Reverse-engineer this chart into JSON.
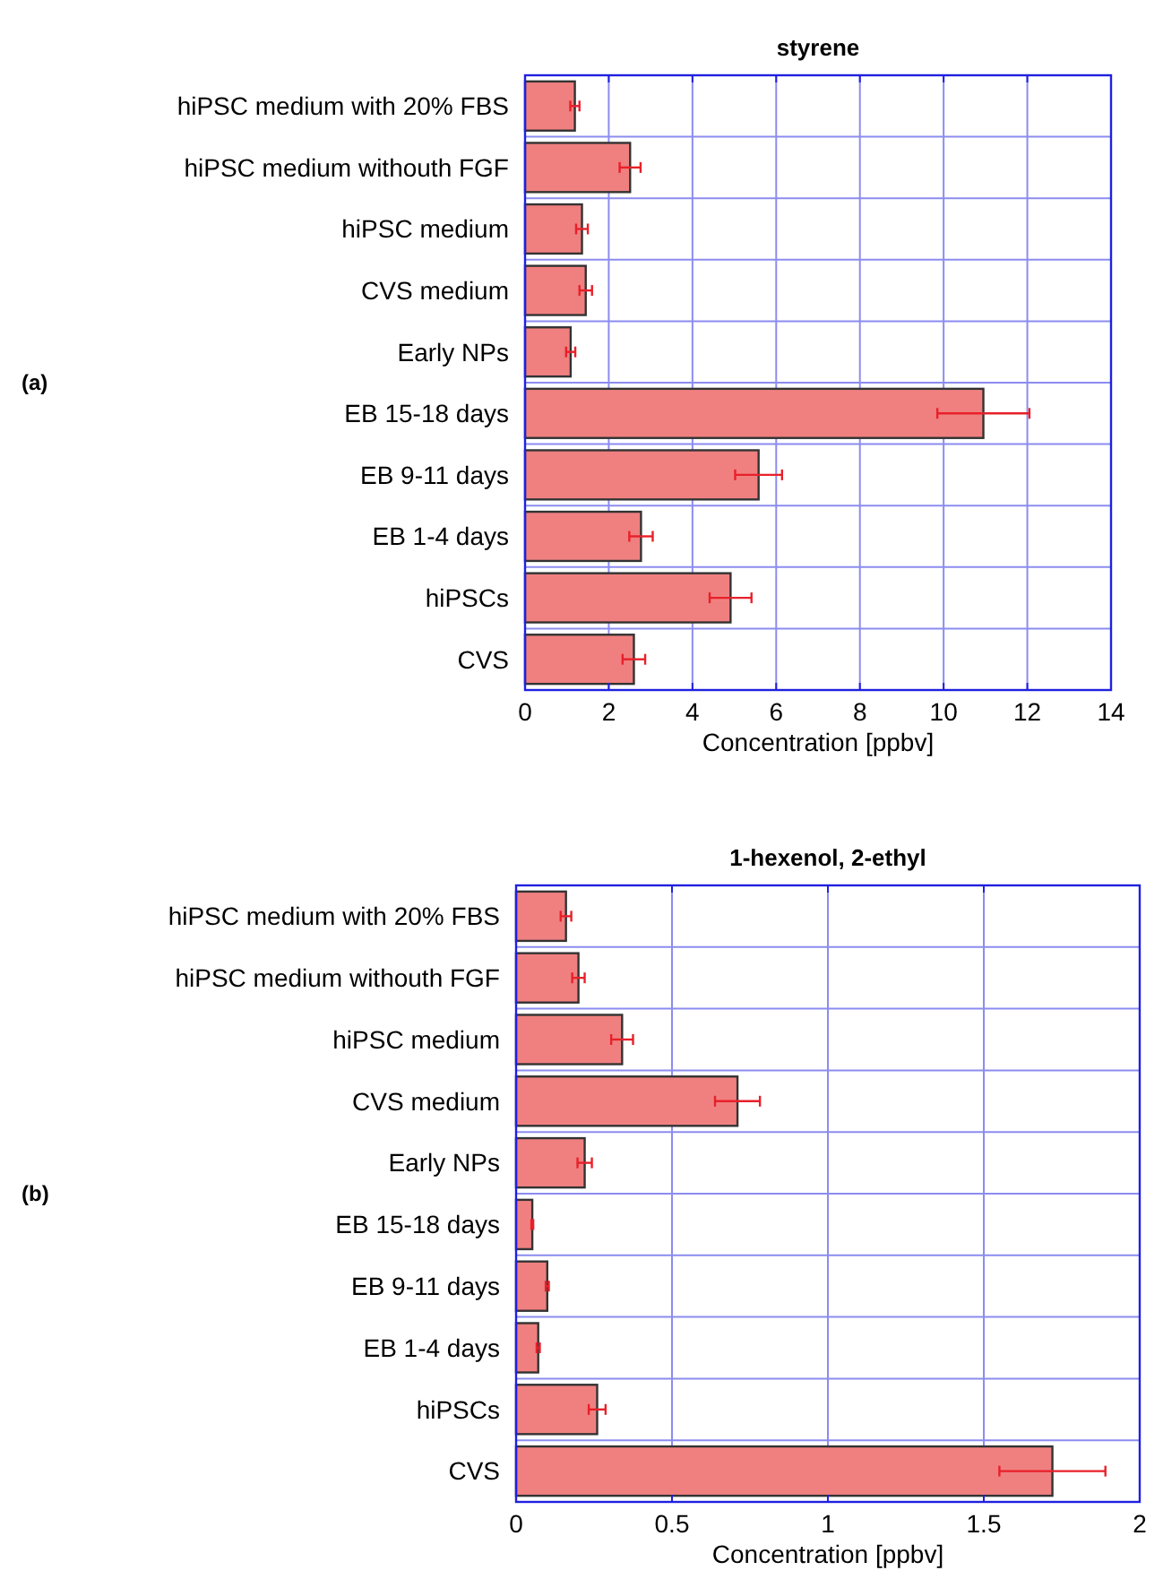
{
  "chart_data": [
    {
      "type": "bar",
      "orientation": "horizontal",
      "title": "styrene",
      "xlabel": "Concentration [ppbv]",
      "annotations": [
        "(a)"
      ],
      "categories": [
        "hiPSC medium with 20% FBS",
        "hiPSC medium withouth FGF",
        "hiPSC medium",
        "CVS medium",
        "Early NPs",
        "EB 15-18 days",
        "EB 9-11 days",
        "EB 1-4 days",
        "hiPSCs",
        "CVS"
      ],
      "values": [
        1.19,
        2.51,
        1.36,
        1.45,
        1.09,
        10.95,
        5.58,
        2.77,
        4.91,
        2.6
      ],
      "errors": [
        0.11,
        0.25,
        0.14,
        0.15,
        0.11,
        1.1,
        0.56,
        0.28,
        0.5,
        0.27
      ],
      "color": "#f08080",
      "xlim": [
        0,
        14
      ],
      "xticks": [
        0,
        2,
        4,
        6,
        8,
        10,
        12,
        14
      ],
      "grid": true
    },
    {
      "type": "bar",
      "orientation": "horizontal",
      "title": "1-hexenol, 2-ethyl",
      "xlabel": "Concentration [ppbv]",
      "annotations": [
        "(b)"
      ],
      "categories": [
        "hiPSC medium with 20% FBS",
        "hiPSC medium withouth FGF",
        "hiPSC medium",
        "CVS medium",
        "Early NPs",
        "EB 15-18 days",
        "EB 9-11 days",
        "EB 1-4 days",
        "hiPSCs",
        "CVS"
      ],
      "values": [
        0.16,
        0.2,
        0.34,
        0.71,
        0.22,
        0.052,
        0.1,
        0.071,
        0.26,
        1.72
      ],
      "errors": [
        0.017,
        0.02,
        0.035,
        0.072,
        0.023,
        0.003,
        0.005,
        0.005,
        0.027,
        0.17
      ],
      "color": "#f08080",
      "xlim": [
        0,
        2
      ],
      "xticks": [
        0,
        0.5,
        1,
        1.5,
        2
      ],
      "grid": true
    }
  ]
}
